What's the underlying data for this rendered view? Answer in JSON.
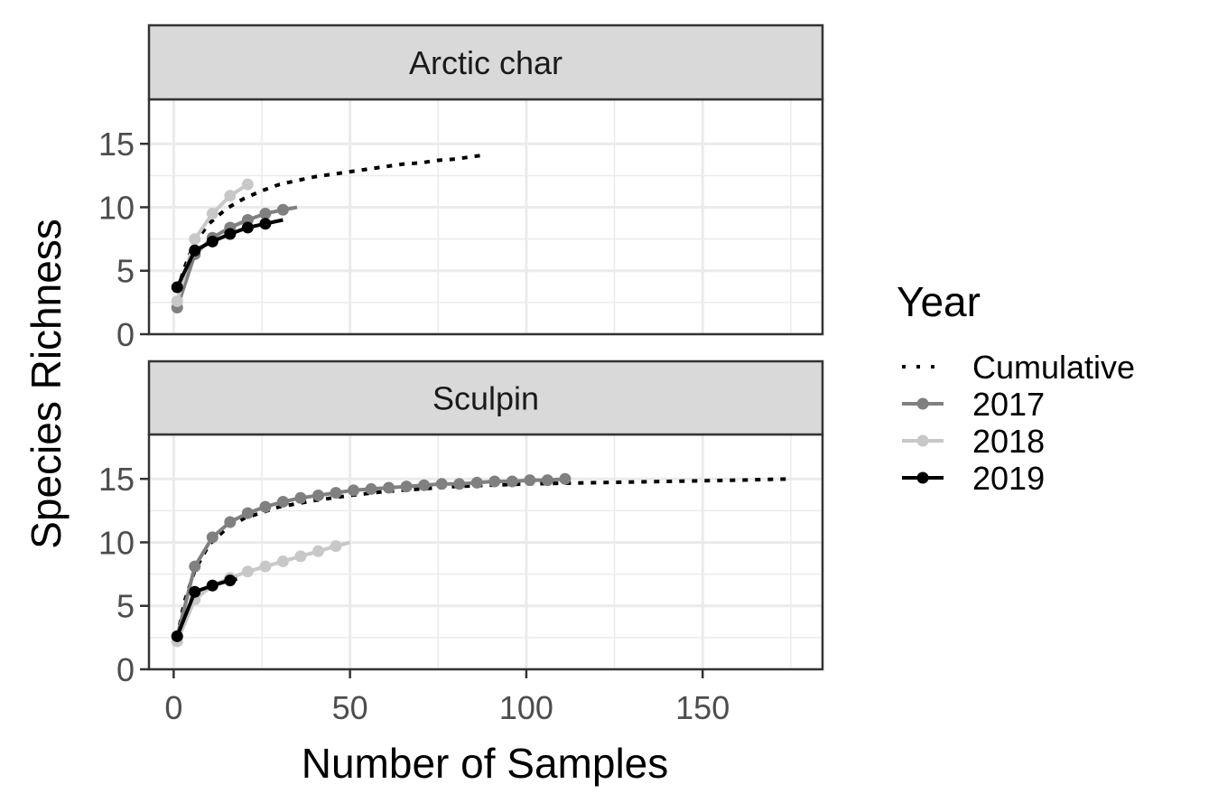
{
  "chart_data": {
    "type": "line",
    "xlabel": "Number of Samples",
    "ylabel": "Species Richness",
    "xlim": [
      -7,
      184
    ],
    "ylim": [
      0,
      18.5
    ],
    "x_ticks": [
      0,
      50,
      100,
      150
    ],
    "x_tick_labels": [
      "0",
      "50",
      "100",
      "150"
    ],
    "y_ticks": [
      0,
      5,
      10,
      15
    ],
    "y_tick_labels": [
      "0",
      "5",
      "10",
      "15"
    ],
    "grid": true,
    "legend": {
      "title": "Year",
      "position": "right",
      "entries": [
        {
          "key": "Cumulative",
          "label": "Cumulative"
        },
        {
          "key": "2017",
          "label": "2017"
        },
        {
          "key": "2018",
          "label": "2018"
        },
        {
          "key": "2019",
          "label": "2019"
        }
      ]
    },
    "colors": {
      "Cumulative": "#000000",
      "2017": "#808080",
      "2018": "#c8c8c8",
      "2019": "#000000"
    },
    "panels": [
      {
        "strip": "Arctic char",
        "series": [
          {
            "name": "Cumulative",
            "style": "dotted",
            "points": false,
            "x": [
              1,
              3,
              5,
              7,
              10,
              15,
              20,
              25,
              30,
              35,
              40,
              45,
              50,
              55,
              60,
              65,
              70,
              75,
              80,
              85,
              88
            ],
            "y": [
              3.4,
              5.2,
              6.6,
              7.6,
              8.7,
              9.9,
              10.7,
              11.3,
              11.8,
              12.1,
              12.4,
              12.6,
              12.8,
              13.0,
              13.2,
              13.4,
              13.5,
              13.7,
              13.8,
              14.0,
              14.1
            ]
          },
          {
            "name": "2017",
            "style": "solid",
            "points": true,
            "x": [
              1,
              6,
              11,
              16,
              21,
              26,
              31,
              35
            ],
            "y": [
              2.1,
              6.3,
              7.6,
              8.4,
              9.0,
              9.5,
              9.8,
              10.0
            ],
            "marker_x": [
              1,
              6,
              11,
              16,
              21,
              26,
              31
            ]
          },
          {
            "name": "2018",
            "style": "solid",
            "points": true,
            "x": [
              1,
              6,
              11,
              16,
              21
            ],
            "y": [
              2.6,
              7.5,
              9.5,
              10.9,
              11.8
            ],
            "marker_x": [
              1,
              6,
              11,
              16,
              21
            ]
          },
          {
            "name": "2019",
            "style": "solid",
            "points": true,
            "x": [
              1,
              6,
              11,
              16,
              21,
              26,
              31
            ],
            "y": [
              3.7,
              6.6,
              7.3,
              7.9,
              8.4,
              8.7,
              9.0
            ],
            "marker_x": [
              1,
              6,
              11,
              16,
              21,
              26
            ]
          }
        ]
      },
      {
        "strip": "Sculpin",
        "series": [
          {
            "name": "Cumulative",
            "style": "dotted",
            "points": false,
            "x": [
              1,
              3,
              6,
              10,
              15,
              20,
              30,
              40,
              50,
              60,
              80,
              100,
              120,
              140,
              160,
              175
            ],
            "y": [
              2.5,
              5.3,
              7.8,
              9.8,
              11.1,
              11.9,
              12.8,
              13.3,
              13.7,
              14.0,
              14.4,
              14.6,
              14.7,
              14.8,
              14.9,
              15.0
            ]
          },
          {
            "name": "2017",
            "style": "solid",
            "points": true,
            "x": [
              1,
              6,
              11,
              16,
              21,
              26,
              31,
              36,
              41,
              46,
              51,
              56,
              61,
              66,
              71,
              76,
              81,
              86,
              91,
              96,
              101,
              106,
              111
            ],
            "y": [
              2.6,
              8.1,
              10.4,
              11.6,
              12.3,
              12.8,
              13.2,
              13.5,
              13.7,
              13.9,
              14.1,
              14.2,
              14.3,
              14.4,
              14.5,
              14.6,
              14.6,
              14.7,
              14.8,
              14.8,
              14.9,
              14.9,
              15.0
            ],
            "marker_x": [
              1,
              6,
              11,
              16,
              21,
              26,
              31,
              36,
              41,
              46,
              51,
              56,
              61,
              66,
              71,
              76,
              81,
              86,
              91,
              96,
              101,
              106,
              111
            ]
          },
          {
            "name": "2018",
            "style": "solid",
            "points": true,
            "x": [
              1,
              6,
              11,
              16,
              21,
              26,
              31,
              36,
              41,
              46,
              50
            ],
            "y": [
              2.2,
              5.5,
              6.6,
              7.2,
              7.7,
              8.1,
              8.5,
              8.9,
              9.3,
              9.7,
              10.0
            ],
            "marker_x": [
              1,
              6,
              11,
              16,
              21,
              26,
              31,
              36,
              41,
              46
            ]
          },
          {
            "name": "2019",
            "style": "solid",
            "points": true,
            "x": [
              1,
              6,
              11,
              16,
              18
            ],
            "y": [
              2.6,
              6.1,
              6.6,
              7.0,
              7.1
            ],
            "marker_x": [
              1,
              6,
              11,
              16
            ]
          }
        ]
      }
    ]
  }
}
